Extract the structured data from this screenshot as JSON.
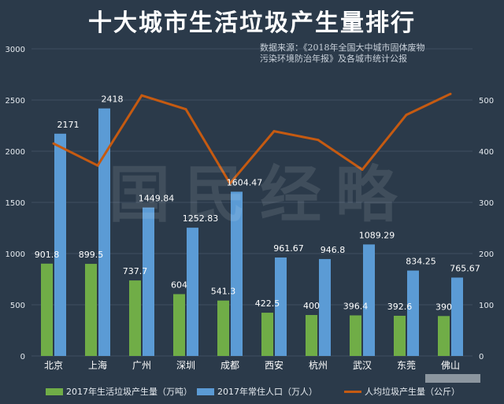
{
  "title": "十大城市生活垃圾产生量排行",
  "source_line1": "数据来源：《2018年全国大中城市固体废物",
  "source_line2": "污染环境防治年报》及各城市统计公报",
  "watermark": "国民经略",
  "colors": {
    "background": "#2b3a4a",
    "waste_bar": "#70ad47",
    "population_bar": "#5b9bd5",
    "per_capita_line": "#c55a11",
    "grid": "#3f4f60",
    "text": "#ffffff"
  },
  "chart_data": {
    "type": "bar",
    "title": "十大城市生活垃圾产生量排行",
    "categories": [
      "北京",
      "上海",
      "广州",
      "深圳",
      "成都",
      "西安",
      "杭州",
      "武汉",
      "东莞",
      "佛山"
    ],
    "series": [
      {
        "name": "2017年生活垃圾产生量（万吨）",
        "type": "bar",
        "axis": "left",
        "values": [
          901.8,
          899.5,
          737.7,
          604,
          541.3,
          422.5,
          400,
          396.4,
          392.6,
          390
        ],
        "labels": [
          "901.8",
          "899.5",
          "737.7",
          "604",
          "541.3",
          "422.5",
          "400",
          "396.4",
          "392.6",
          "390"
        ]
      },
      {
        "name": "2017年常住人口（万人）",
        "type": "bar",
        "axis": "left",
        "values": [
          2171,
          2418,
          1449.84,
          1252.83,
          1604.47,
          961.67,
          946.8,
          1089.29,
          834.25,
          765.67
        ],
        "labels": [
          "2171",
          "2418",
          "1449.84",
          "1252.83",
          "1604.47",
          "961.67",
          "946.8",
          "1089.29",
          "834.25",
          "765.67"
        ]
      },
      {
        "name": "人均垃圾产生量（公斤）",
        "type": "line",
        "axis": "right",
        "values": [
          415,
          372,
          509,
          482,
          337,
          439,
          422,
          364,
          471,
          512
        ]
      }
    ],
    "y_left": {
      "ylim": [
        0,
        3000
      ],
      "ticks": [
        "0",
        "500",
        "1000",
        "1500",
        "2000",
        "2500",
        "3000"
      ]
    },
    "y_right": {
      "ylim": [
        0,
        600
      ],
      "ticks": [
        "0",
        "100",
        "200",
        "300",
        "400",
        "500"
      ]
    },
    "grid": true,
    "legend_position": "bottom"
  }
}
